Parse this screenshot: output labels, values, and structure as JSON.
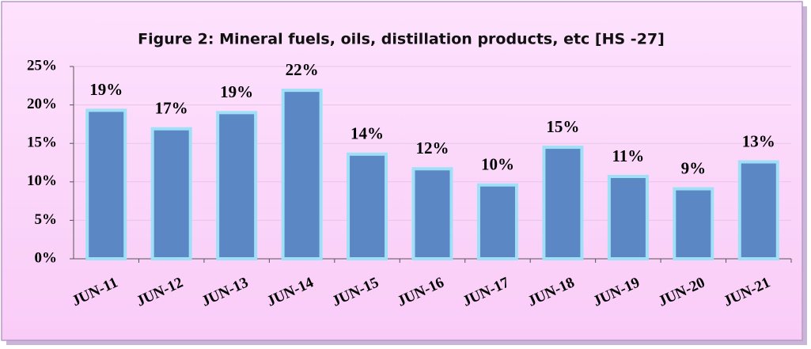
{
  "chart_data": {
    "type": "bar",
    "title": "Figure 2: Mineral fuels, oils, distillation products, etc [HS -27]",
    "categories": [
      "JUN-11",
      "JUN-12",
      "JUN-13",
      "JUN-14",
      "JUN-15",
      "JUN-16",
      "JUN-17",
      "JUN-18",
      "JUN-19",
      "JUN-20",
      "JUN-21"
    ],
    "values": [
      19.3,
      16.9,
      19.0,
      21.9,
      13.6,
      11.7,
      9.6,
      14.5,
      10.7,
      9.1,
      12.6
    ],
    "value_labels": [
      "19%",
      "17%",
      "19%",
      "22%",
      "14%",
      "12%",
      "10%",
      "15%",
      "11%",
      "9%",
      "13%"
    ],
    "color": "#5b87c5",
    "ylim": [
      0,
      25
    ],
    "yticks": [
      {
        "value": 0,
        "label": "0%"
      },
      {
        "value": 5,
        "label": "5%"
      },
      {
        "value": 10,
        "label": "10%"
      },
      {
        "value": 15,
        "label": "15%"
      },
      {
        "value": 20,
        "label": "20%"
      },
      {
        "value": 25,
        "label": "25%"
      }
    ],
    "grid": true
  }
}
